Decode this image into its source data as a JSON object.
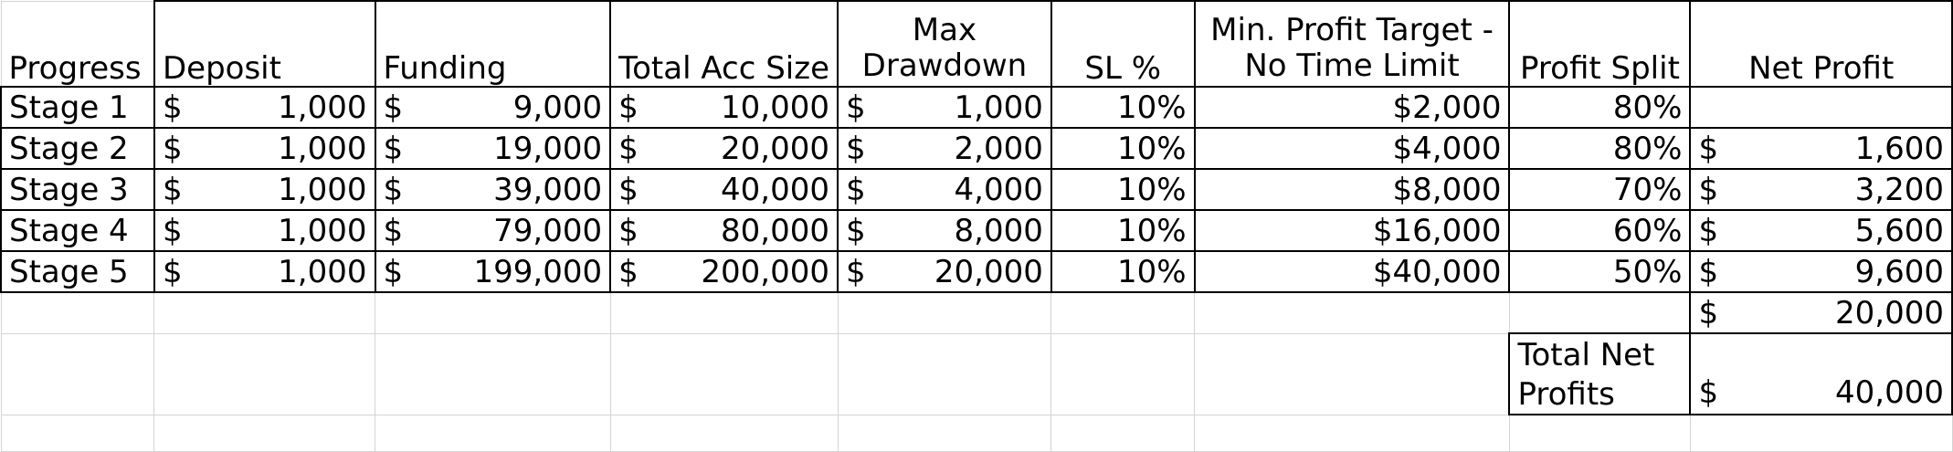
{
  "headers": {
    "progress": "Progress",
    "deposit": "Deposit",
    "funding": "Funding",
    "total_acc_size": "Total Acc Size",
    "max_drawdown_line1": "Max",
    "max_drawdown_line2": "Drawdown",
    "sl_pct": "SL %",
    "min_profit_line1": "Min. Profit Target -",
    "min_profit_line2": "No Time Limit",
    "profit_split": "Profit Split",
    "net_profit": "Net Profit"
  },
  "currency": "$",
  "rows": [
    {
      "stage": "Stage 1",
      "deposit": "1,000",
      "funding": "9,000",
      "total": "10,000",
      "drawdown": "1,000",
      "sl": "10%",
      "target": "$2,000",
      "split": "80%",
      "net": ""
    },
    {
      "stage": "Stage 2",
      "deposit": "1,000",
      "funding": "19,000",
      "total": "20,000",
      "drawdown": "2,000",
      "sl": "10%",
      "target": "$4,000",
      "split": "80%",
      "net": "1,600"
    },
    {
      "stage": "Stage 3",
      "deposit": "1,000",
      "funding": "39,000",
      "total": "40,000",
      "drawdown": "4,000",
      "sl": "10%",
      "target": "$8,000",
      "split": "70%",
      "net": "3,200"
    },
    {
      "stage": "Stage 4",
      "deposit": "1,000",
      "funding": "79,000",
      "total": "80,000",
      "drawdown": "8,000",
      "sl": "10%",
      "target": "$16,000",
      "split": "60%",
      "net": "5,600"
    },
    {
      "stage": "Stage 5",
      "deposit": "1,000",
      "funding": "199,000",
      "total": "200,000",
      "drawdown": "20,000",
      "sl": "10%",
      "target": "$40,000",
      "split": "50%",
      "net": "9,600"
    }
  ],
  "net_subtotal": "20,000",
  "total_net_profits_label": "Total Net Profits",
  "total_net_profits_value": "40,000"
}
